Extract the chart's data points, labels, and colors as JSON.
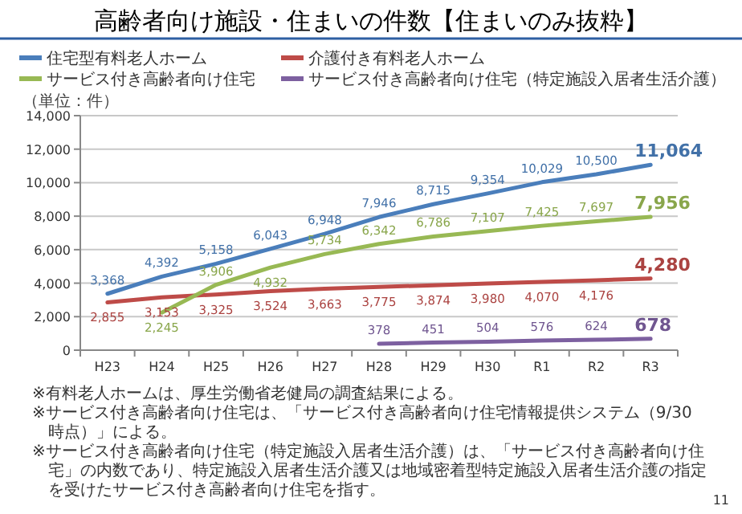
{
  "chart_data": {
    "type": "line",
    "title": "高齢者向け施設・住まいの件数【住まいのみ抜粋】",
    "ylabel": "（単位：件）",
    "categories": [
      "H23",
      "H24",
      "H25",
      "H26",
      "H27",
      "H28",
      "H29",
      "H30",
      "R1",
      "R2",
      "R3"
    ],
    "series": [
      {
        "name": "住宅型有料老人ホーム",
        "color": "#4a7ebb",
        "values": [
          3368,
          4392,
          5158,
          6043,
          6948,
          7946,
          8715,
          9354,
          10029,
          10500,
          11064
        ],
        "value_labels": [
          "3,368",
          "4,392",
          "5,158",
          "6,043",
          "6,948",
          "7,946",
          "8,715",
          "9,354",
          "10,029",
          "10,500",
          "11,064"
        ]
      },
      {
        "name": "介護付き有料老人ホーム",
        "color": "#be4b48",
        "values": [
          2855,
          3153,
          3325,
          3524,
          3663,
          3775,
          3874,
          3980,
          4070,
          4176,
          4280
        ],
        "value_labels": [
          "2,855",
          "3,153",
          "3,325",
          "3,524",
          "3,663",
          "3,775",
          "3,874",
          "3,980",
          "4,070",
          "4,176",
          "4,280"
        ]
      },
      {
        "name": "サービス付き高齢者向け住宅",
        "color": "#98b954",
        "values": [
          null,
          2245,
          3906,
          4932,
          5734,
          6342,
          6786,
          7107,
          7425,
          7697,
          7956
        ],
        "value_labels": [
          null,
          "2,245",
          "3,906",
          "4,932",
          "5,734",
          "6,342",
          "6,786",
          "7,107",
          "7,425",
          "7,697",
          "7,956"
        ]
      },
      {
        "name": "サービス付き高齢者向け住宅（特定施設入居者生活介護）",
        "color": "#7d60a0",
        "values": [
          null,
          null,
          null,
          null,
          null,
          378,
          451,
          504,
          576,
          624,
          678
        ],
        "value_labels": [
          null,
          null,
          null,
          null,
          null,
          "378",
          "451",
          "504",
          "576",
          "624",
          "678"
        ]
      }
    ],
    "ylim": [
      0,
      14000
    ],
    "yticks": [
      0,
      {
        "value": 2000,
        "label": "2,000"
      },
      {
        "value": 4000,
        "label": "4,000"
      },
      {
        "value": 6000,
        "label": "6,000"
      },
      {
        "value": 8000,
        "label": "8,000"
      },
      {
        "value": 10000,
        "label": "10,000"
      },
      {
        "value": 12000,
        "label": "12,000"
      },
      {
        "value": 14000,
        "label": "14,000"
      }
    ],
    "grid": "y",
    "legend": "top",
    "marker": "none",
    "line_style": "solid",
    "annotations": [
      "※有料老人ホームは、厚生労働省老健局の調査結果による。",
      "※サービス付き高齢者向け住宅は、「サービス付き高齢者向け住宅情報提供システム（9/30時点）」による。",
      "※サービス付き高齢者向け住宅（特定施設入居者生活介護）は、「サービス付き高齢者向け住宅」の内数であり、特定施設入居者生活介護又は地域密着型特定施設入居者生活介護の指定を受けたサービス付き高齢者向け住宅を指す。",
      "11"
    ]
  }
}
